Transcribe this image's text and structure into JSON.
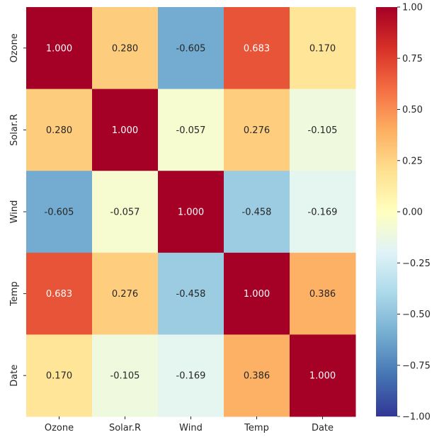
{
  "chart_data": {
    "type": "heatmap",
    "x_labels": [
      "Ozone",
      "Solar.R",
      "Wind",
      "Temp",
      "Date"
    ],
    "y_labels": [
      "Ozone",
      "Solar.R",
      "Wind",
      "Temp",
      "Date"
    ],
    "values": [
      [
        1.0,
        0.28,
        -0.605,
        0.683,
        0.17
      ],
      [
        0.28,
        1.0,
        -0.057,
        0.276,
        -0.105
      ],
      [
        -0.605,
        -0.057,
        1.0,
        -0.458,
        -0.169
      ],
      [
        0.683,
        0.276,
        -0.458,
        1.0,
        0.386
      ],
      [
        0.17,
        -0.105,
        -0.169,
        0.386,
        1.0
      ]
    ],
    "cell_labels": [
      [
        "1.000",
        "0.280",
        "-0.605",
        "0.683",
        "0.170"
      ],
      [
        "0.280",
        "1.000",
        "-0.057",
        "0.276",
        "-0.105"
      ],
      [
        "-0.605",
        "-0.057",
        "1.000",
        "-0.458",
        "-0.169"
      ],
      [
        "0.683",
        "0.276",
        "-0.458",
        "1.000",
        "0.386"
      ],
      [
        "0.170",
        "-0.105",
        "-0.169",
        "0.386",
        "1.000"
      ]
    ],
    "colormap": "RdYlBu_r",
    "vmin": -1.0,
    "vmax": 1.0,
    "colorbar": {
      "ticks": [
        1.0,
        0.75,
        0.5,
        0.25,
        0.0,
        -0.25,
        -0.5,
        -0.75,
        -1.0
      ],
      "tick_labels": [
        "1.00",
        "0.75",
        "0.50",
        "0.25",
        "0.00",
        "−0.25",
        "−0.50",
        "−0.75",
        "−1.00"
      ]
    },
    "title": "",
    "xlabel": "",
    "ylabel": "",
    "grid": false
  }
}
